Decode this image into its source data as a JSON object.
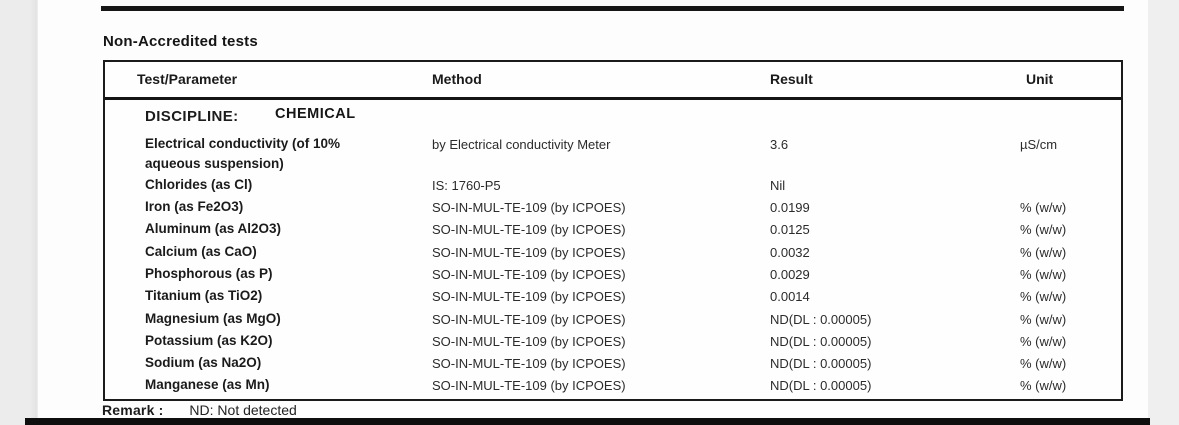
{
  "document": {
    "section_title": "Non-Accredited tests",
    "table": {
      "headers": {
        "test": "Test/Parameter",
        "method": "Method",
        "result": "Result",
        "unit": "Unit"
      },
      "discipline": {
        "label": "DISCIPLINE:",
        "value": "CHEMICAL"
      },
      "rows": [
        {
          "test": "Electrical conductivity (of 10% aqueous suspension)",
          "method": "by Electrical conductivity Meter",
          "result": "3.6",
          "unit": "µS/cm"
        },
        {
          "test": "Chlorides (as Cl)",
          "method": "IS: 1760-P5",
          "result": "Nil",
          "unit": ""
        },
        {
          "test": "Iron (as Fe2O3)",
          "method": "SO-IN-MUL-TE-109 (by ICPOES)",
          "result": "0.0199",
          "unit": "% (w/w)"
        },
        {
          "test": "Aluminum (as Al2O3)",
          "method": "SO-IN-MUL-TE-109 (by ICPOES)",
          "result": "0.0125",
          "unit": "% (w/w)"
        },
        {
          "test": "Calcium (as CaO)",
          "method": "SO-IN-MUL-TE-109 (by ICPOES)",
          "result": "0.0032",
          "unit": "% (w/w)"
        },
        {
          "test": "Phosphorous (as P)",
          "method": "SO-IN-MUL-TE-109 (by ICPOES)",
          "result": "0.0029",
          "unit": "% (w/w)"
        },
        {
          "test": "Titanium (as TiO2)",
          "method": "SO-IN-MUL-TE-109 (by ICPOES)",
          "result": "0.0014",
          "unit": "% (w/w)"
        },
        {
          "test": "Magnesium (as MgO)",
          "method": "SO-IN-MUL-TE-109 (by ICPOES)",
          "result": "ND(DL : 0.00005)",
          "unit": "% (w/w)"
        },
        {
          "test": "Potassium (as K2O)",
          "method": "SO-IN-MUL-TE-109 (by ICPOES)",
          "result": "ND(DL : 0.00005)",
          "unit": "% (w/w)"
        },
        {
          "test": "Sodium (as Na2O)",
          "method": "SO-IN-MUL-TE-109 (by ICPOES)",
          "result": "ND(DL : 0.00005)",
          "unit": "% (w/w)"
        },
        {
          "test": "Manganese (as Mn)",
          "method": "SO-IN-MUL-TE-109 (by ICPOES)",
          "result": "ND(DL : 0.00005)",
          "unit": "% (w/w)"
        }
      ]
    },
    "remark": {
      "label": "Remark :",
      "text": "ND: Not detected"
    }
  }
}
